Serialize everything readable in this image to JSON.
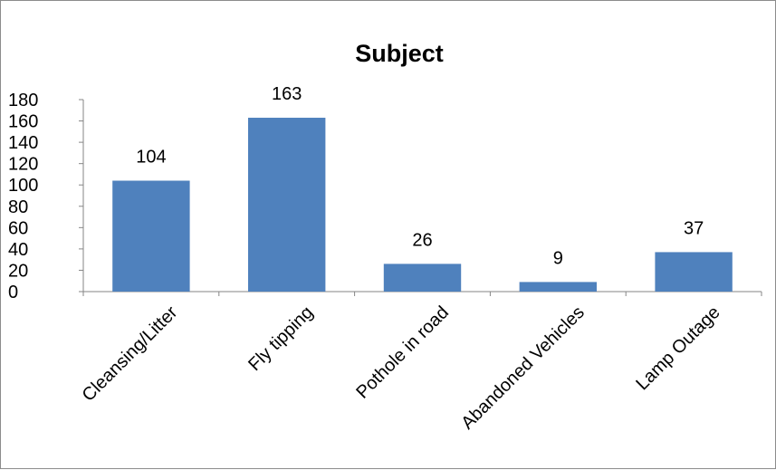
{
  "chart_data": {
    "type": "bar",
    "title": "Subject",
    "categories": [
      "Cleansing/Litter",
      "Fly tipping",
      "Pothole in road",
      "Abandoned Vehicles",
      "Lamp Outage"
    ],
    "values": [
      104,
      163,
      26,
      9,
      37
    ],
    "data_labels": [
      "104",
      "163",
      "26",
      "9",
      "37"
    ],
    "ylim": [
      0,
      180
    ],
    "yticks": [
      0,
      20,
      40,
      60,
      80,
      100,
      120,
      140,
      160,
      180
    ],
    "ytick_labels": [
      "0",
      "20",
      "40",
      "60",
      "80",
      "100",
      "120",
      "140",
      "160",
      "180"
    ],
    "bar_color": "#4f81bd",
    "axis_color": "#868686",
    "grid": false,
    "legend": "none"
  }
}
